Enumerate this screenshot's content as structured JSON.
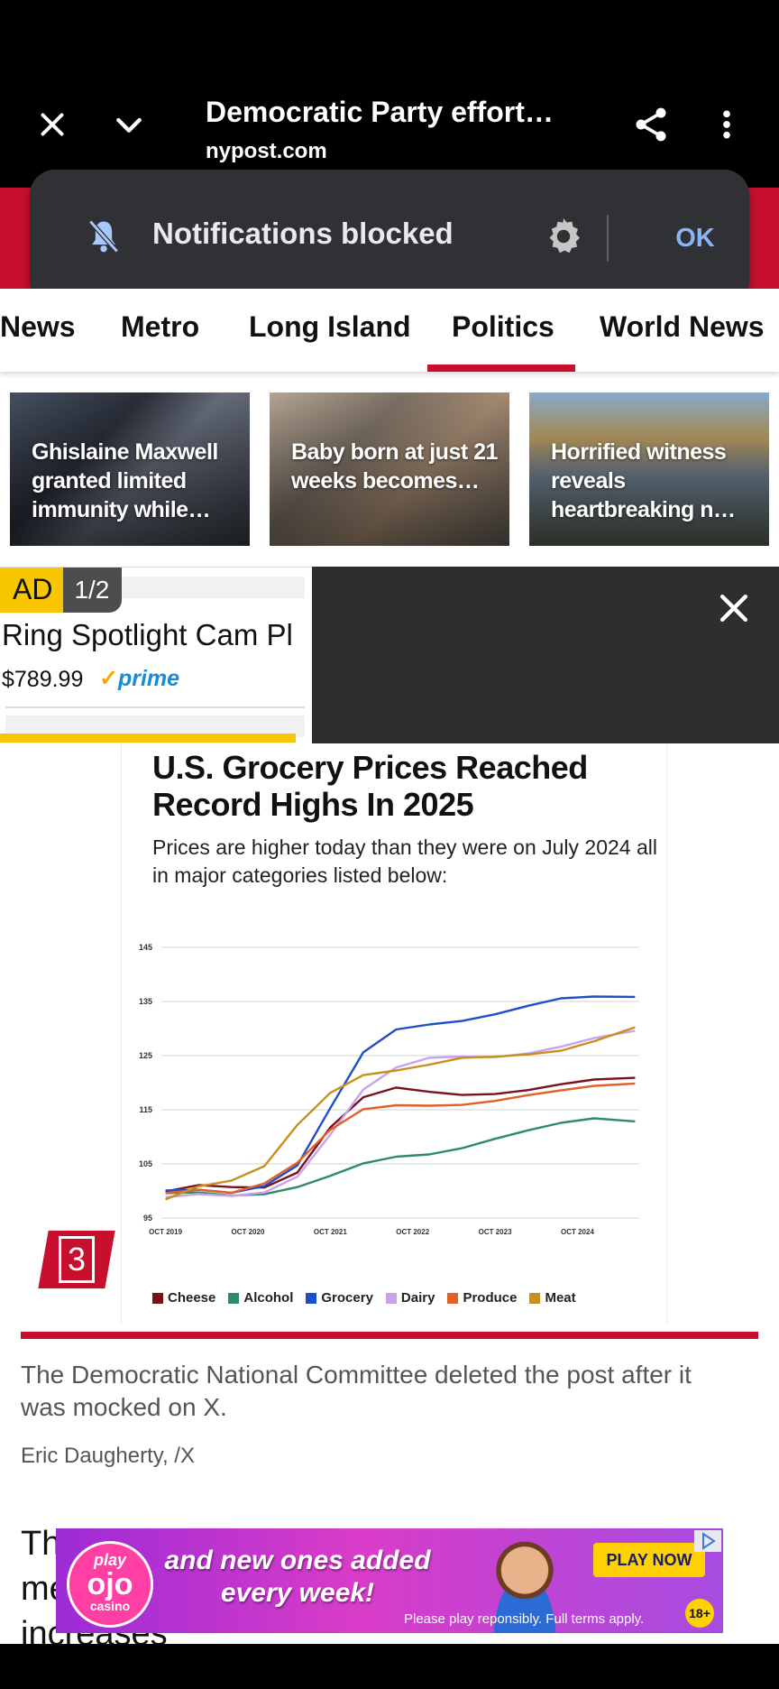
{
  "browser": {
    "title": "Democratic Party effort…",
    "domain": "nypost.com",
    "icons": [
      "close-icon",
      "chevron-down-icon",
      "share-icon",
      "more-vert-icon"
    ]
  },
  "toast": {
    "text": "Notifications blocked",
    "ok_label": "OK",
    "icons": [
      "bell-off-icon",
      "gear-icon"
    ]
  },
  "nav": {
    "tabs": [
      "News",
      "Metro",
      "Long Island",
      "Politics",
      "World News"
    ],
    "active": "Politics"
  },
  "stories": [
    {
      "headline": "Ghislaine Maxwell granted limited immunity while…"
    },
    {
      "headline": "Baby born at just 21 weeks becomes…"
    },
    {
      "headline": "Horrified witness reveals heartbreaking n…"
    }
  ],
  "ad": {
    "label": "AD",
    "count": "1/2",
    "product": "Ring Spotlight Cam Pl",
    "price": "$789.99",
    "prime": "prime"
  },
  "slide_number": "3",
  "chart_data": {
    "type": "line",
    "title": "U.S. Grocery Prices Reached Record Highs In 2025",
    "subtitle": "Prices are higher today than they were on July 2024 all in major categories listed below:",
    "xlabel": "",
    "ylabel": "",
    "x_ticks": [
      "OCT 2019",
      "OCT 2020",
      "OCT 2021",
      "OCT 2022",
      "OCT 2023",
      "OCT 2024"
    ],
    "y_ticks": [
      95,
      105,
      115,
      125,
      135,
      145
    ],
    "ylim": [
      95,
      145
    ],
    "xlim": [
      2019.75,
      2025.55
    ],
    "grid": true,
    "legend_position": "bottom",
    "x": [
      2019.8,
      2020.2,
      2020.6,
      2021.0,
      2021.4,
      2021.8,
      2022.2,
      2022.6,
      2023.0,
      2023.4,
      2023.8,
      2024.2,
      2024.6,
      2025.0,
      2025.5
    ],
    "series": [
      {
        "name": "Cheese",
        "color": "#7a1020",
        "values": [
          99.5,
          100.5,
          100.5,
          101.0,
          104.0,
          112.0,
          117.0,
          118.5,
          118.0,
          118.0,
          118.5,
          119.0,
          119.5,
          120.0,
          120.5
        ]
      },
      {
        "name": "Alcohol",
        "color": "#2e8b6a",
        "values": [
          99.0,
          99.5,
          99.5,
          100.0,
          101.0,
          102.5,
          104.5,
          106.0,
          107.0,
          108.5,
          110.0,
          111.0,
          112.0,
          113.0,
          113.0
        ]
      },
      {
        "name": "Grocery",
        "color": "#1f4fc8",
        "values": [
          99.5,
          100.0,
          100.0,
          101.5,
          105.0,
          115.0,
          125.0,
          129.5,
          131.0,
          132.0,
          133.0,
          134.0,
          135.0,
          135.5,
          136.0
        ]
      },
      {
        "name": "Dairy",
        "color": "#c9a2ee",
        "values": [
          99.0,
          99.0,
          98.5,
          99.5,
          103.0,
          111.0,
          119.0,
          122.5,
          124.0,
          124.5,
          125.0,
          126.0,
          127.0,
          128.0,
          129.0
        ]
      },
      {
        "name": "Produce",
        "color": "#e0602a",
        "values": [
          99.0,
          100.0,
          100.0,
          102.0,
          105.5,
          111.0,
          114.5,
          115.5,
          116.0,
          116.5,
          117.0,
          117.5,
          118.0,
          119.0,
          120.0
        ]
      },
      {
        "name": "Meat",
        "color": "#c8901a",
        "values": [
          99.0,
          101.0,
          101.5,
          104.0,
          112.0,
          118.5,
          122.0,
          122.5,
          123.0,
          124.0,
          124.5,
          125.5,
          126.5,
          128.0,
          130.0
        ]
      }
    ]
  },
  "caption": "The Democratic National Committee deleted the post after it was mocked on X.",
  "credit": "Eric Daugherty, /X",
  "body_text": "The White House posted the graphic to social media with two arrows pointing to the price increases",
  "casino_ad": {
    "logo_top": "play",
    "logo_mid": "ojo",
    "logo_bottom": "casino",
    "tagline": "and new ones added every week!",
    "cta": "PLAY NOW",
    "terms": "Please play reponsibly. Full terms apply.",
    "age": "18+"
  }
}
